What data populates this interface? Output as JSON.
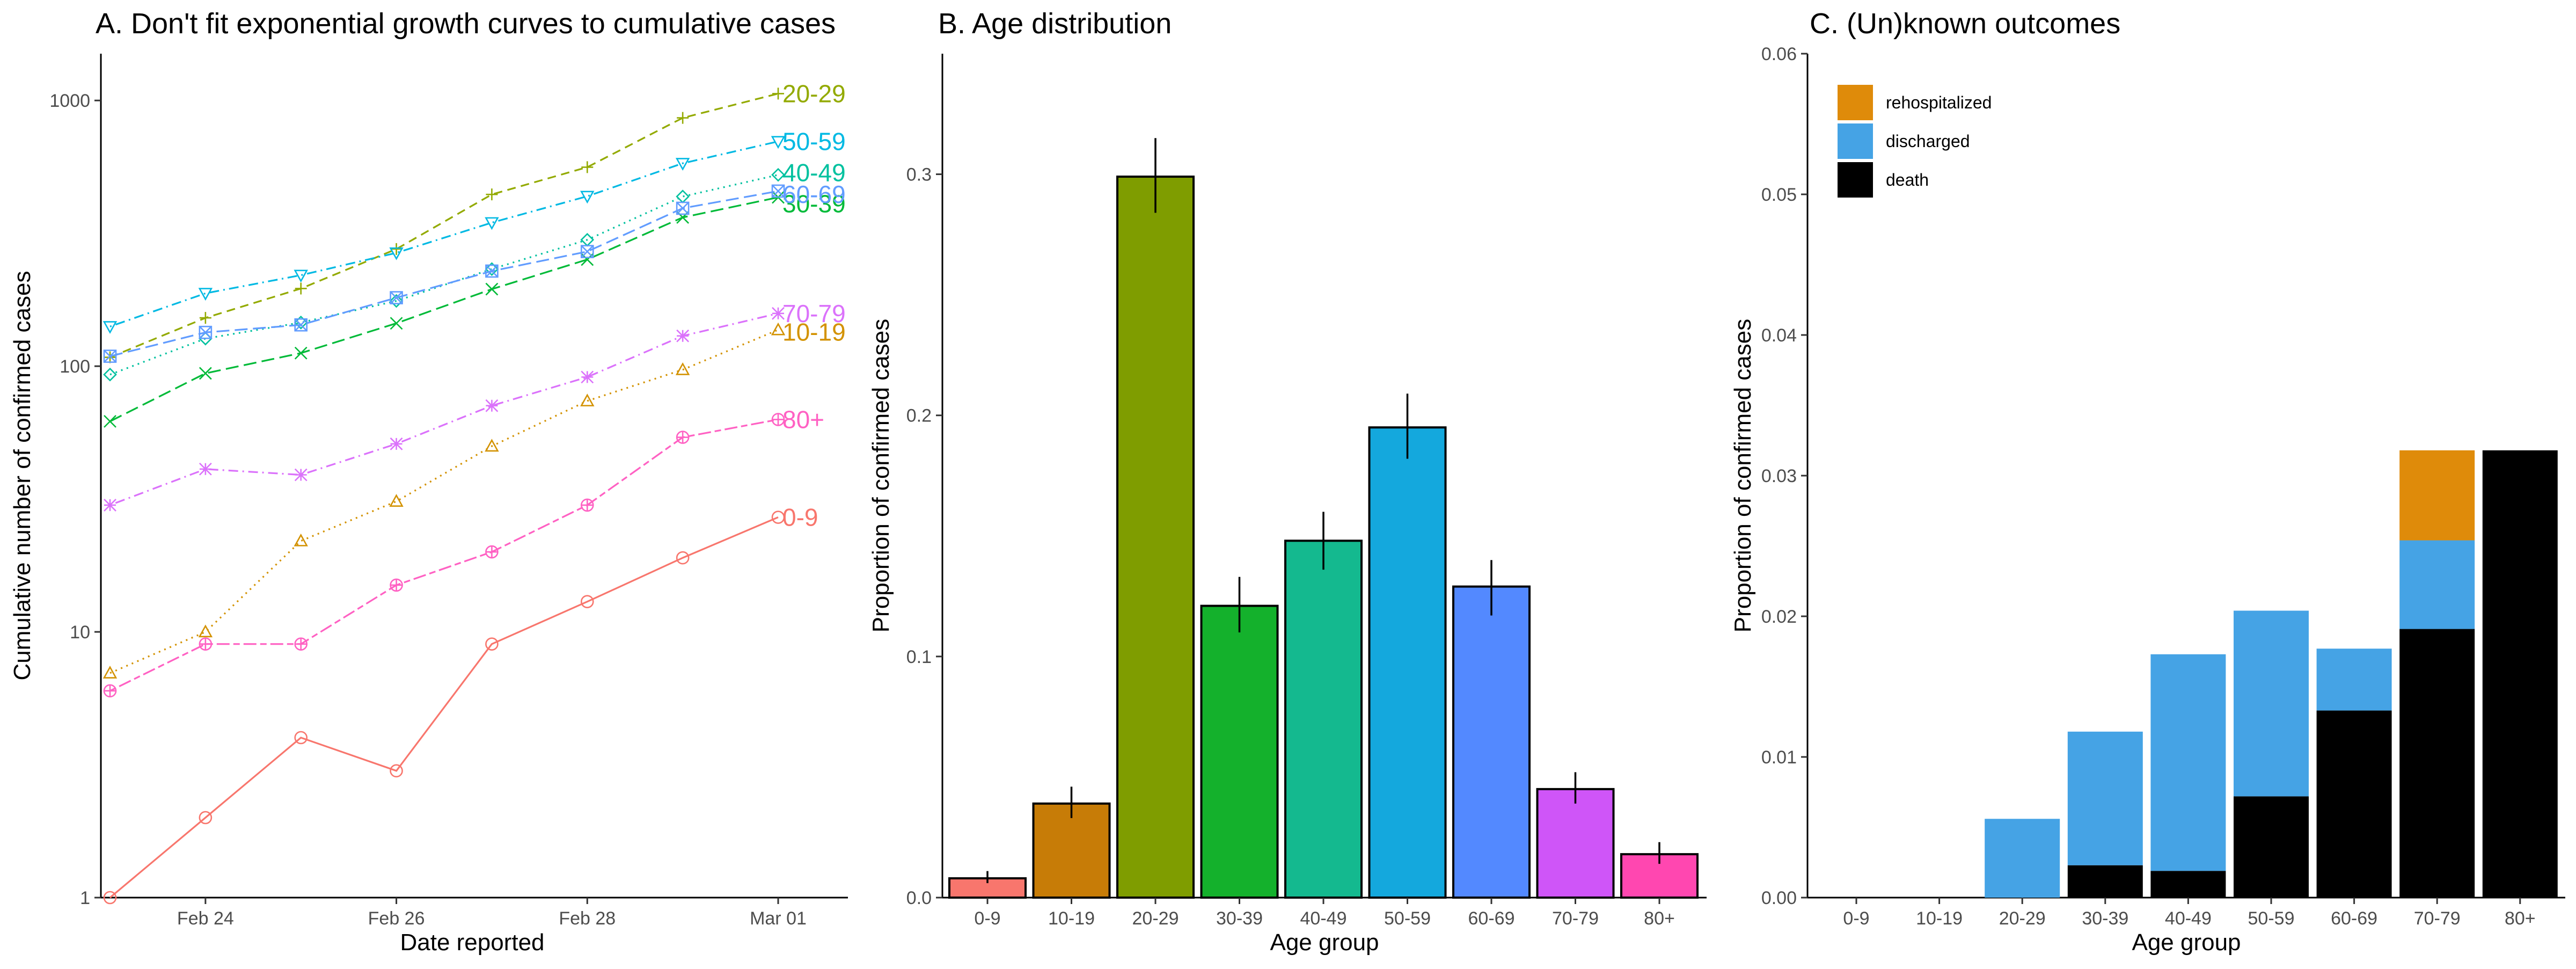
{
  "chart_data": [
    {
      "type": "line",
      "title": "A. Don't fit exponential growth curves to cumulative cases",
      "xlabel": "Date reported",
      "ylabel": "Cumulative number of confirmed cases",
      "yscale": "log10",
      "ylim": [
        1,
        1500
      ],
      "yticks": [
        "1",
        "10",
        "100",
        "1000"
      ],
      "x": [
        "2020-02-23",
        "2020-02-24",
        "2020-02-25",
        "2020-02-26",
        "2020-02-27",
        "2020-02-28",
        "2020-02-29",
        "2020-03-01"
      ],
      "xticks": [
        {
          "date": "2020-02-24",
          "label": "Feb 24"
        },
        {
          "date": "2020-02-26",
          "label": "Feb 26"
        },
        {
          "date": "2020-02-28",
          "label": "Feb 28"
        },
        {
          "date": "2020-03-01",
          "label": "Mar 01"
        }
      ],
      "legend": "end-of-line labels",
      "series": [
        {
          "name": "0-9",
          "color": "#F8766D",
          "dash": "solid",
          "marker": "circle",
          "values": [
            1,
            2,
            4,
            3,
            9,
            13,
            19,
            27
          ]
        },
        {
          "name": "10-19",
          "color": "#D39200",
          "dash": "dotted",
          "marker": "triangle-up",
          "values": [
            7,
            10,
            22,
            31,
            50,
            74,
            97,
            137
          ]
        },
        {
          "name": "20-29",
          "color": "#93AA00",
          "dash": "dashed",
          "marker": "plus",
          "values": [
            108,
            152,
            196,
            276,
            443,
            561,
            860,
            1061
          ]
        },
        {
          "name": "30-39",
          "color": "#00BA38",
          "dash": "longdash",
          "marker": "cross",
          "values": [
            62,
            94,
            112,
            145,
            195,
            252,
            363,
            432
          ]
        },
        {
          "name": "40-49",
          "color": "#00C19F",
          "dash": "dotted",
          "marker": "diamond",
          "values": [
            93,
            127,
            146,
            176,
            232,
            299,
            435,
            525
          ]
        },
        {
          "name": "50-59",
          "color": "#00B9E3",
          "dash": "dotdash",
          "marker": "triangle-down",
          "values": [
            141,
            188,
            220,
            267,
            347,
            436,
            580,
            701
          ]
        },
        {
          "name": "60-69",
          "color": "#619CFF",
          "dash": "longdash",
          "marker": "square-cross",
          "values": [
            109,
            134,
            143,
            181,
            228,
            270,
            393,
            456
          ]
        },
        {
          "name": "70-79",
          "color": "#DB72FB",
          "dash": "dotdash",
          "marker": "asterisk",
          "values": [
            30,
            41,
            39,
            51,
            71,
            91,
            130,
            158
          ]
        },
        {
          "name": "80+",
          "color": "#FF61C3",
          "dash": "twodash",
          "marker": "circle-plus",
          "values": [
            6,
            9,
            9,
            15,
            20,
            30,
            54,
            63
          ]
        }
      ]
    },
    {
      "type": "bar",
      "title": "B. Age distribution",
      "xlabel": "Age group",
      "ylabel": "Proportion of confirmed cases",
      "ylim": [
        0,
        0.35
      ],
      "yticks": [
        "0.0",
        "0.1",
        "0.2",
        "0.3"
      ],
      "categories": [
        "0-9",
        "10-19",
        "20-29",
        "30-39",
        "40-49",
        "50-59",
        "60-69",
        "70-79",
        "80+"
      ],
      "values": [
        0.008,
        0.039,
        0.299,
        0.121,
        0.148,
        0.195,
        0.129,
        0.045,
        0.018
      ],
      "error_low": [
        0.006,
        0.033,
        0.284,
        0.11,
        0.136,
        0.182,
        0.117,
        0.039,
        0.014
      ],
      "error_high": [
        0.011,
        0.046,
        0.315,
        0.133,
        0.16,
        0.209,
        0.14,
        0.052,
        0.023
      ],
      "colors": [
        "#F8766D",
        "#C77C07",
        "#7F9D00",
        "#14B12C",
        "#14B98F",
        "#14A8DD",
        "#5389FF",
        "#CF55F8",
        "#FF47B0"
      ]
    },
    {
      "type": "bar",
      "stacked": true,
      "title": "C. (Un)known outcomes",
      "xlabel": "Age group",
      "ylabel": "Proportion of confirmed cases",
      "ylim": [
        0,
        0.06
      ],
      "yticks": [
        "0.00",
        "0.01",
        "0.02",
        "0.03",
        "0.04",
        "0.05",
        "0.06"
      ],
      "categories": [
        "0-9",
        "10-19",
        "20-29",
        "30-39",
        "40-49",
        "50-59",
        "60-69",
        "70-79",
        "80+"
      ],
      "legend": "top-left",
      "legend_order": [
        "rehospitalized",
        "discharged",
        "death"
      ],
      "series": [
        {
          "name": "death",
          "color": "#000000",
          "values": [
            0,
            0,
            0,
            0.0023,
            0.0019,
            0.0072,
            0.0133,
            0.0191,
            0.0318
          ]
        },
        {
          "name": "discharged",
          "color": "#45A3E5",
          "values": [
            0,
            0,
            0.0056,
            0.0095,
            0.0154,
            0.0132,
            0.0044,
            0.0063,
            0
          ]
        },
        {
          "name": "rehospitalized",
          "color": "#DF8B0A",
          "values": [
            0,
            0,
            0,
            0,
            0,
            0,
            0,
            0.0064,
            0
          ]
        }
      ]
    }
  ]
}
